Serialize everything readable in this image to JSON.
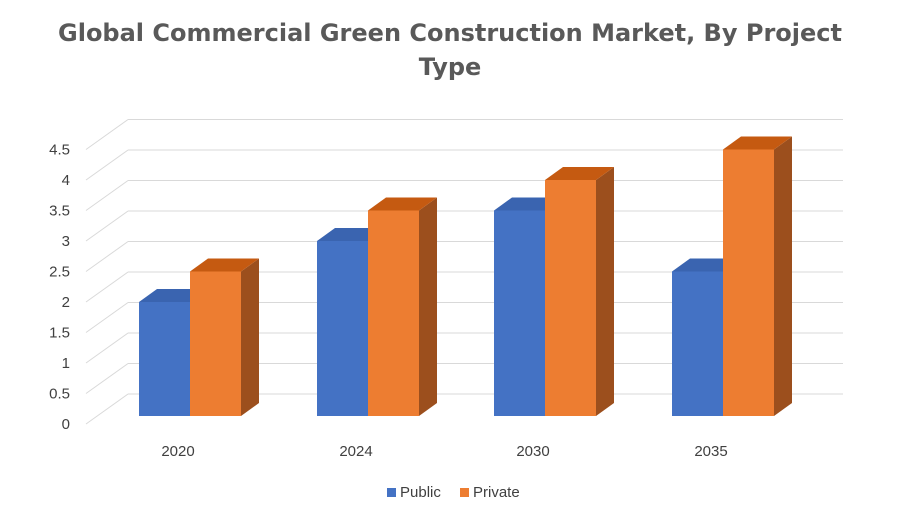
{
  "chart_data": {
    "type": "bar",
    "title": "Global Commercial Green Construction Market, By Project Type",
    "categories": [
      "2020",
      "2024",
      "2030",
      "2035"
    ],
    "series": [
      {
        "name": "Public",
        "values": [
          2.0,
          3.0,
          3.5,
          2.5
        ]
      },
      {
        "name": "Private",
        "values": [
          2.5,
          3.5,
          4.0,
          4.5
        ]
      }
    ],
    "xlabel": "",
    "ylabel": "",
    "ylim": [
      0,
      4.5
    ],
    "yticks": [
      "0",
      "0.5",
      "1",
      "1.5",
      "2",
      "2.5",
      "3",
      "3.5",
      "4",
      "4.5"
    ],
    "grid": true,
    "legend": "bottom",
    "colors": {
      "Public": {
        "front": "#4472C4",
        "side": "#2F5597",
        "top": "#3A64B0"
      },
      "Private": {
        "front": "#ED7D31",
        "side": "#9C4F1D",
        "top": "#C55A11"
      },
      "grid": "#D9D9D9"
    }
  }
}
